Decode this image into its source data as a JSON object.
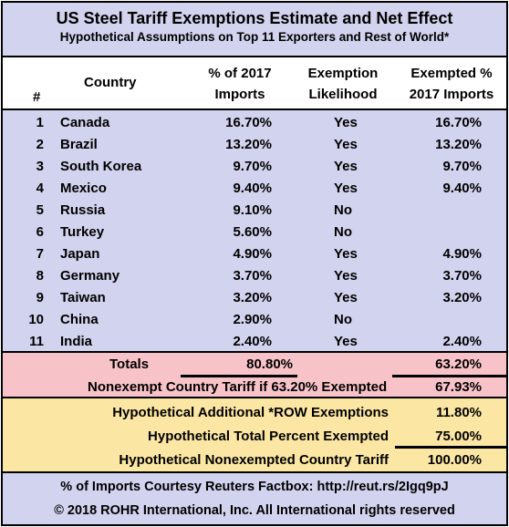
{
  "header": {
    "title": "US Steel Tariff Exemptions Estimate and Net Effect",
    "subtitle": "Hypothetical Assumptions on Top 11 Exporters and Rest of World*"
  },
  "columns": {
    "num": "#",
    "country": "Country",
    "pct_line1": "% of 2017",
    "pct_line2": "Imports",
    "likelihood_line1": "Exemption",
    "likelihood_line2": "Likelihood",
    "exempted_line1": "Exempted %",
    "exempted_line2": "2017 Imports"
  },
  "rows": [
    {
      "num": "1",
      "country": "Canada",
      "pct": "16.70%",
      "likelihood": "Yes",
      "exempted": "16.70%"
    },
    {
      "num": "2",
      "country": "Brazil",
      "pct": "13.20%",
      "likelihood": "Yes",
      "exempted": "13.20%"
    },
    {
      "num": "3",
      "country": "South Korea",
      "pct": "9.70%",
      "likelihood": "Yes",
      "exempted": "9.70%"
    },
    {
      "num": "4",
      "country": "Mexico",
      "pct": "9.40%",
      "likelihood": "Yes",
      "exempted": "9.40%"
    },
    {
      "num": "5",
      "country": "Russia",
      "pct": "9.10%",
      "likelihood": "No",
      "exempted": ""
    },
    {
      "num": "6",
      "country": "Turkey",
      "pct": "5.60%",
      "likelihood": "No",
      "exempted": ""
    },
    {
      "num": "7",
      "country": "Japan",
      "pct": "4.90%",
      "likelihood": "Yes",
      "exempted": "4.90%"
    },
    {
      "num": "8",
      "country": "Germany",
      "pct": "3.70%",
      "likelihood": "Yes",
      "exempted": "3.70%"
    },
    {
      "num": "9",
      "country": "Taiwan",
      "pct": "3.20%",
      "likelihood": "Yes",
      "exempted": "3.20%"
    },
    {
      "num": "10",
      "country": "China",
      "pct": "2.90%",
      "likelihood": "No",
      "exempted": ""
    },
    {
      "num": "11",
      "country": "India",
      "pct": "2.40%",
      "likelihood": "Yes",
      "exempted": "2.40%"
    }
  ],
  "totals": {
    "label": "Totals",
    "pct": "80.80%",
    "exempted": "63.20%",
    "nonexempt_label": "Nonexempt Country Tariff if 63.20% Exempted",
    "nonexempt_value": "67.93%"
  },
  "hypothetical": {
    "row_label": "Hypothetical Additional *ROW Exemptions",
    "row_value": "11.80%",
    "total_label": "Hypothetical Total Percent Exempted",
    "total_value": "75.00%",
    "tariff_label": "Hypothetical Nonexempted Country Tariff",
    "tariff_value": "100.00%"
  },
  "footer": {
    "source": "% of Imports Courtesy Reuters Factbox: http://reut.rs/2Igq9pJ",
    "copyright": "© 2018 ROHR International, Inc. All International rights reserved"
  },
  "colors": {
    "header_bg": "#d2d3ee",
    "totals_bg": "#f8c3c8",
    "hypothetical_bg": "#fbe6a3"
  }
}
